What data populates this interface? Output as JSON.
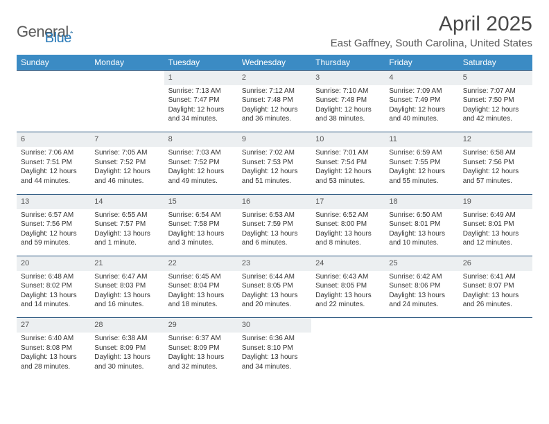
{
  "logo": {
    "text1": "General",
    "text2": "Blue"
  },
  "title": "April 2025",
  "location": "East Gaffney, South Carolina, United States",
  "theme": {
    "header_bg": "#3b8bc4",
    "header_fg": "#ffffff",
    "daynum_bg": "#eceff1",
    "sep_color": "#1f4e79",
    "text_color": "#333333",
    "title_color": "#4a4a4a"
  },
  "weekdays": [
    "Sunday",
    "Monday",
    "Tuesday",
    "Wednesday",
    "Thursday",
    "Friday",
    "Saturday"
  ],
  "weeks": [
    [
      null,
      null,
      {
        "n": "1",
        "sr": "Sunrise: 7:13 AM",
        "ss": "Sunset: 7:47 PM",
        "dl": "Daylight: 12 hours and 34 minutes."
      },
      {
        "n": "2",
        "sr": "Sunrise: 7:12 AM",
        "ss": "Sunset: 7:48 PM",
        "dl": "Daylight: 12 hours and 36 minutes."
      },
      {
        "n": "3",
        "sr": "Sunrise: 7:10 AM",
        "ss": "Sunset: 7:48 PM",
        "dl": "Daylight: 12 hours and 38 minutes."
      },
      {
        "n": "4",
        "sr": "Sunrise: 7:09 AM",
        "ss": "Sunset: 7:49 PM",
        "dl": "Daylight: 12 hours and 40 minutes."
      },
      {
        "n": "5",
        "sr": "Sunrise: 7:07 AM",
        "ss": "Sunset: 7:50 PM",
        "dl": "Daylight: 12 hours and 42 minutes."
      }
    ],
    [
      {
        "n": "6",
        "sr": "Sunrise: 7:06 AM",
        "ss": "Sunset: 7:51 PM",
        "dl": "Daylight: 12 hours and 44 minutes."
      },
      {
        "n": "7",
        "sr": "Sunrise: 7:05 AM",
        "ss": "Sunset: 7:52 PM",
        "dl": "Daylight: 12 hours and 46 minutes."
      },
      {
        "n": "8",
        "sr": "Sunrise: 7:03 AM",
        "ss": "Sunset: 7:52 PM",
        "dl": "Daylight: 12 hours and 49 minutes."
      },
      {
        "n": "9",
        "sr": "Sunrise: 7:02 AM",
        "ss": "Sunset: 7:53 PM",
        "dl": "Daylight: 12 hours and 51 minutes."
      },
      {
        "n": "10",
        "sr": "Sunrise: 7:01 AM",
        "ss": "Sunset: 7:54 PM",
        "dl": "Daylight: 12 hours and 53 minutes."
      },
      {
        "n": "11",
        "sr": "Sunrise: 6:59 AM",
        "ss": "Sunset: 7:55 PM",
        "dl": "Daylight: 12 hours and 55 minutes."
      },
      {
        "n": "12",
        "sr": "Sunrise: 6:58 AM",
        "ss": "Sunset: 7:56 PM",
        "dl": "Daylight: 12 hours and 57 minutes."
      }
    ],
    [
      {
        "n": "13",
        "sr": "Sunrise: 6:57 AM",
        "ss": "Sunset: 7:56 PM",
        "dl": "Daylight: 12 hours and 59 minutes."
      },
      {
        "n": "14",
        "sr": "Sunrise: 6:55 AM",
        "ss": "Sunset: 7:57 PM",
        "dl": "Daylight: 13 hours and 1 minute."
      },
      {
        "n": "15",
        "sr": "Sunrise: 6:54 AM",
        "ss": "Sunset: 7:58 PM",
        "dl": "Daylight: 13 hours and 3 minutes."
      },
      {
        "n": "16",
        "sr": "Sunrise: 6:53 AM",
        "ss": "Sunset: 7:59 PM",
        "dl": "Daylight: 13 hours and 6 minutes."
      },
      {
        "n": "17",
        "sr": "Sunrise: 6:52 AM",
        "ss": "Sunset: 8:00 PM",
        "dl": "Daylight: 13 hours and 8 minutes."
      },
      {
        "n": "18",
        "sr": "Sunrise: 6:50 AM",
        "ss": "Sunset: 8:01 PM",
        "dl": "Daylight: 13 hours and 10 minutes."
      },
      {
        "n": "19",
        "sr": "Sunrise: 6:49 AM",
        "ss": "Sunset: 8:01 PM",
        "dl": "Daylight: 13 hours and 12 minutes."
      }
    ],
    [
      {
        "n": "20",
        "sr": "Sunrise: 6:48 AM",
        "ss": "Sunset: 8:02 PM",
        "dl": "Daylight: 13 hours and 14 minutes."
      },
      {
        "n": "21",
        "sr": "Sunrise: 6:47 AM",
        "ss": "Sunset: 8:03 PM",
        "dl": "Daylight: 13 hours and 16 minutes."
      },
      {
        "n": "22",
        "sr": "Sunrise: 6:45 AM",
        "ss": "Sunset: 8:04 PM",
        "dl": "Daylight: 13 hours and 18 minutes."
      },
      {
        "n": "23",
        "sr": "Sunrise: 6:44 AM",
        "ss": "Sunset: 8:05 PM",
        "dl": "Daylight: 13 hours and 20 minutes."
      },
      {
        "n": "24",
        "sr": "Sunrise: 6:43 AM",
        "ss": "Sunset: 8:05 PM",
        "dl": "Daylight: 13 hours and 22 minutes."
      },
      {
        "n": "25",
        "sr": "Sunrise: 6:42 AM",
        "ss": "Sunset: 8:06 PM",
        "dl": "Daylight: 13 hours and 24 minutes."
      },
      {
        "n": "26",
        "sr": "Sunrise: 6:41 AM",
        "ss": "Sunset: 8:07 PM",
        "dl": "Daylight: 13 hours and 26 minutes."
      }
    ],
    [
      {
        "n": "27",
        "sr": "Sunrise: 6:40 AM",
        "ss": "Sunset: 8:08 PM",
        "dl": "Daylight: 13 hours and 28 minutes."
      },
      {
        "n": "28",
        "sr": "Sunrise: 6:38 AM",
        "ss": "Sunset: 8:09 PM",
        "dl": "Daylight: 13 hours and 30 minutes."
      },
      {
        "n": "29",
        "sr": "Sunrise: 6:37 AM",
        "ss": "Sunset: 8:09 PM",
        "dl": "Daylight: 13 hours and 32 minutes."
      },
      {
        "n": "30",
        "sr": "Sunrise: 6:36 AM",
        "ss": "Sunset: 8:10 PM",
        "dl": "Daylight: 13 hours and 34 minutes."
      },
      null,
      null,
      null
    ]
  ]
}
